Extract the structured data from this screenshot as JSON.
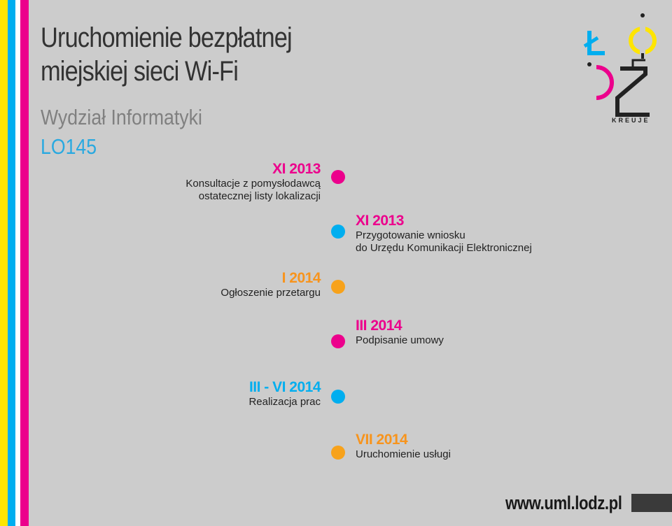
{
  "header": {
    "title_line1": "Uruchomienie bezpłatnej",
    "title_line2": "miejskiej sieci Wi-Fi",
    "subtitle": "Wydział Informatyki",
    "code": "LO145"
  },
  "logo": {
    "caption": "KREUJE"
  },
  "colors": {
    "pink": "#ec008c",
    "blue": "#00aeef",
    "orange": "#f7941d",
    "yellow": "#ffe500"
  },
  "timeline": [
    {
      "side": "left",
      "color": "pink",
      "date": "XI 2013",
      "desc": [
        "Konsultacje z pomysłodawcą",
        "ostatecznej listy lokalizacji"
      ]
    },
    {
      "side": "right",
      "color": "blue",
      "date": "XI 2013",
      "desc": [
        "Przygotowanie wniosku",
        "do Urzędu Komunikacji Elektronicznej"
      ]
    },
    {
      "side": "left",
      "color": "orange",
      "date": "I 2014",
      "desc": [
        "Ogłoszenie przetargu"
      ]
    },
    {
      "side": "right",
      "color": "pink",
      "date": "III 2014",
      "desc": [
        "Podpisanie umowy"
      ]
    },
    {
      "side": "left",
      "color": "blue",
      "date": "III - VI 2014",
      "desc": [
        "Realizacja prac"
      ]
    },
    {
      "side": "right",
      "color": "orange",
      "date": "VII 2014",
      "desc": [
        "Uruchomienie usługi"
      ]
    }
  ],
  "footer": {
    "url": "www.uml.lodz.pl"
  }
}
